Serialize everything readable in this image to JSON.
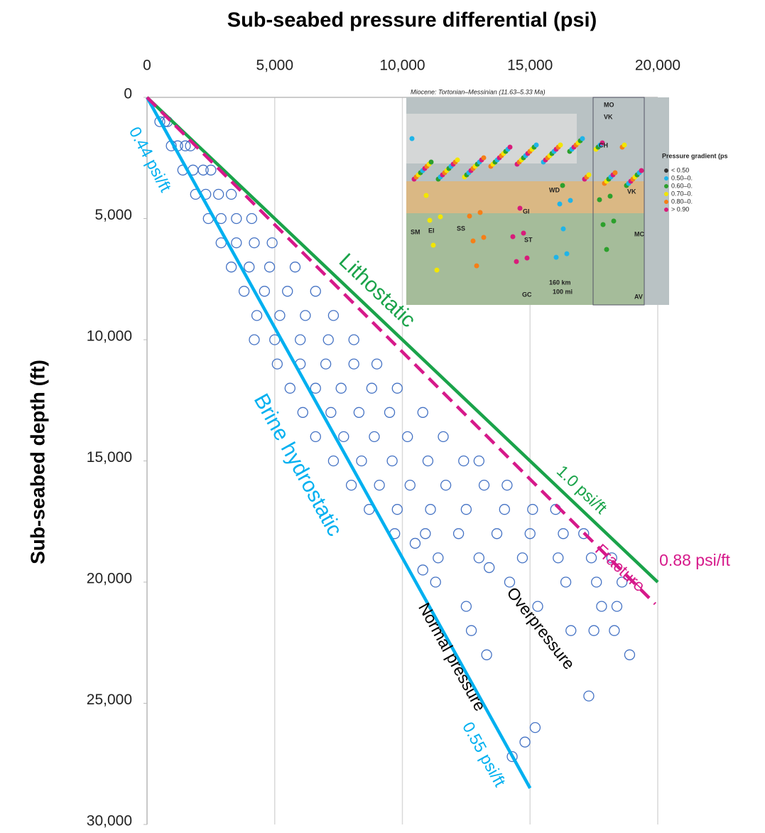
{
  "chart_data": {
    "type": "scatter",
    "title": "Sub-seabed pressure differential (psi)",
    "y_label": "Sub-seabed depth (ft)",
    "xlim": [
      0,
      20000
    ],
    "ylim": [
      0,
      30000
    ],
    "y_inverted": true,
    "xticks": [
      0,
      {
        "value": 5000,
        "label": "5,000"
      },
      {
        "value": 10000,
        "label": "10,000"
      },
      {
        "value": 15000,
        "label": "15,000"
      },
      {
        "value": 20000,
        "label": "20,000"
      }
    ],
    "yticks": [
      0,
      {
        "value": 5000,
        "label": "5,000"
      },
      {
        "value": 10000,
        "label": "10,000"
      },
      {
        "value": 15000,
        "label": "15,000"
      },
      {
        "value": 20000,
        "label": "20,000"
      },
      {
        "value": 25000,
        "label": "25,000"
      },
      {
        "value": 30000,
        "label": "30,000"
      }
    ],
    "grid": true,
    "color": "#4472c4",
    "x": [
      500,
      700,
      800,
      950,
      1200,
      1500,
      1700,
      1400,
      1800,
      2200,
      2500,
      1900,
      2300,
      2800,
      3300,
      2400,
      2900,
      3500,
      4100,
      2900,
      3500,
      4200,
      4900,
      3300,
      4000,
      4800,
      5800,
      3800,
      4600,
      5500,
      6600,
      4300,
      5200,
      6200,
      7300,
      4200,
      5000,
      6000,
      7100,
      8100,
      5100,
      6000,
      7000,
      8100,
      9000,
      5600,
      6600,
      7600,
      8800,
      9800,
      6100,
      7200,
      8300,
      9500,
      10800,
      6600,
      7700,
      8900,
      10200,
      11600,
      7300,
      8400,
      9600,
      11000,
      12400,
      13000,
      8000,
      9100,
      10300,
      11700,
      13200,
      14100,
      8700,
      9800,
      11100,
      12500,
      14000,
      15100,
      16000,
      9700,
      10900,
      12200,
      13700,
      15000,
      16300,
      17100,
      11400,
      13000,
      14700,
      16100,
      17400,
      18200,
      11300,
      14200,
      16400,
      17600,
      18600,
      12500,
      15300,
      17800,
      18400,
      12700,
      16600,
      17500,
      18300,
      13300,
      18900,
      17300,
      15200,
      14800,
      14300,
      10500,
      10800,
      13400
    ],
    "values": [
      1000,
      1000,
      1000,
      2000,
      2000,
      2000,
      2000,
      3000,
      3000,
      3000,
      3000,
      4000,
      4000,
      4000,
      4000,
      5000,
      5000,
      5000,
      5000,
      6000,
      6000,
      6000,
      6000,
      7000,
      7000,
      7000,
      7000,
      8000,
      8000,
      8000,
      8000,
      9000,
      9000,
      9000,
      9000,
      10000,
      10000,
      10000,
      10000,
      10000,
      11000,
      11000,
      11000,
      11000,
      11000,
      12000,
      12000,
      12000,
      12000,
      12000,
      13000,
      13000,
      13000,
      13000,
      13000,
      14000,
      14000,
      14000,
      14000,
      14000,
      15000,
      15000,
      15000,
      15000,
      15000,
      15000,
      16000,
      16000,
      16000,
      16000,
      16000,
      16000,
      17000,
      17000,
      17000,
      17000,
      17000,
      17000,
      17000,
      18000,
      18000,
      18000,
      18000,
      18000,
      18000,
      18000,
      19000,
      19000,
      19000,
      19000,
      19000,
      19000,
      20000,
      20000,
      20000,
      20000,
      20000,
      21000,
      21000,
      21000,
      21000,
      22000,
      22000,
      22000,
      22000,
      23000,
      23000,
      24700,
      26000,
      26600,
      27200,
      18400,
      19500,
      19400
    ],
    "lines": [
      {
        "color": "#1aa34a",
        "dashed": false,
        "x": [
          0,
          20000
        ],
        "values": [
          0,
          20000
        ]
      },
      {
        "color": "#00b0f0",
        "dashed": false,
        "x": [
          0,
          15000
        ],
        "values": [
          0,
          28500
        ]
      },
      {
        "color": "#d6198a",
        "dashed": true,
        "x": [
          0,
          19900
        ],
        "values": [
          0,
          20900
        ]
      }
    ],
    "annotations": [
      {
        "text": "0.44 psi/ft",
        "color": "#00b0f0"
      },
      {
        "text": "Lithostatic",
        "color": "#1aa34a"
      },
      {
        "text": "1.0 psi/ft",
        "color": "#1aa34a"
      },
      {
        "text": "Brine hydrostatic",
        "color": "#00b0f0"
      },
      {
        "text": "Fracture",
        "color": "#d6198a"
      },
      {
        "text": "0.88 psi/ft",
        "color": "#d6198a"
      },
      {
        "text": "Normal pressure",
        "color": "#000000"
      },
      {
        "text": "Overpressure",
        "color": "#000000"
      },
      {
        "text": "0.55 psi/ft",
        "color": "#00b0f0"
      }
    ]
  },
  "inset": {
    "title": "Miocene: Tortonian–Messinian (11.63–5.33 Ma)",
    "labels": [
      "MO",
      "VK",
      "CH",
      "VK",
      "WD",
      "GI",
      "ST",
      "SM",
      "EI",
      "SS",
      "MC",
      "GC",
      "AV",
      "160 km",
      "100 mi"
    ],
    "legend_title": "Pressure gradient (ps",
    "legend": [
      "< 0.50",
      "0.50–0.",
      "0.60–0.",
      "0.70–0.",
      "0.80–0.",
      "> 0.90"
    ]
  }
}
